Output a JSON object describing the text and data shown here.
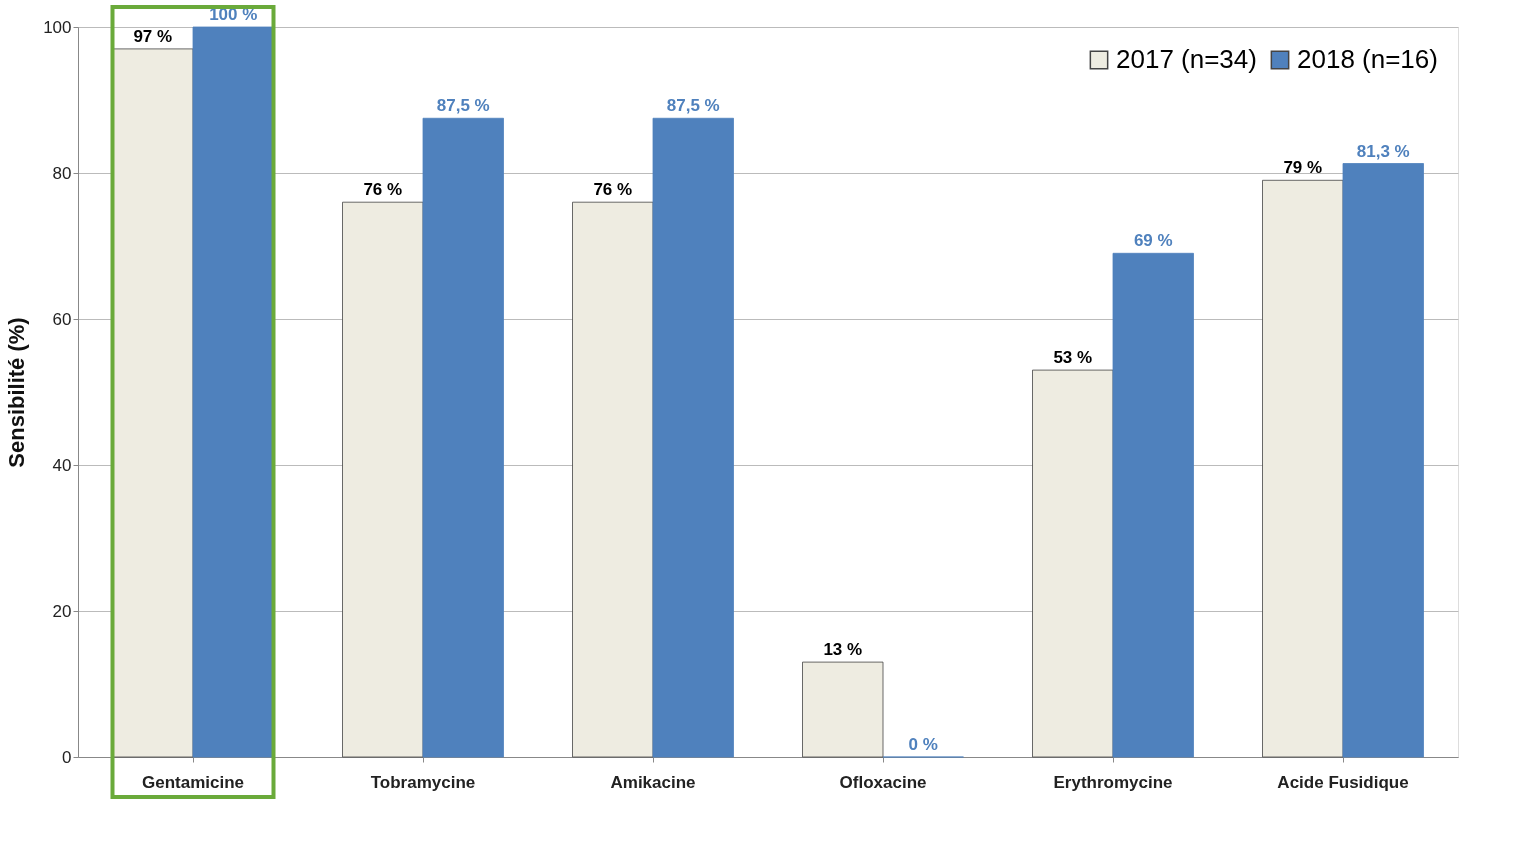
{
  "chart_data": {
    "type": "bar",
    "ylabel": "Sensibilité  (%)",
    "categories": [
      "Gentamicine",
      "Tobramycine",
      "Amikacine",
      "Ofloxacine",
      "Erythromycine",
      "Acide Fusidique"
    ],
    "series": [
      {
        "name": "2017 (n=34)",
        "color": "#eeece1",
        "values": [
          97,
          76,
          76,
          13,
          53,
          79
        ],
        "value_labels": [
          "97 %",
          "76 %",
          "76 %",
          "13 %",
          "53 %",
          "79 %"
        ]
      },
      {
        "name": "2018 (n=16)",
        "color": "#4f81bd",
        "values": [
          100,
          87.5,
          87.5,
          0,
          69,
          81.3
        ],
        "value_labels": [
          "100 %",
          "87,5 %",
          "87,5 %",
          "0 %",
          "69 %",
          "81,3 %"
        ]
      }
    ],
    "ylim": [
      0,
      100
    ],
    "yticks": [
      0,
      20,
      40,
      60,
      80,
      100
    ],
    "grid": "y",
    "legend": "top right"
  }
}
